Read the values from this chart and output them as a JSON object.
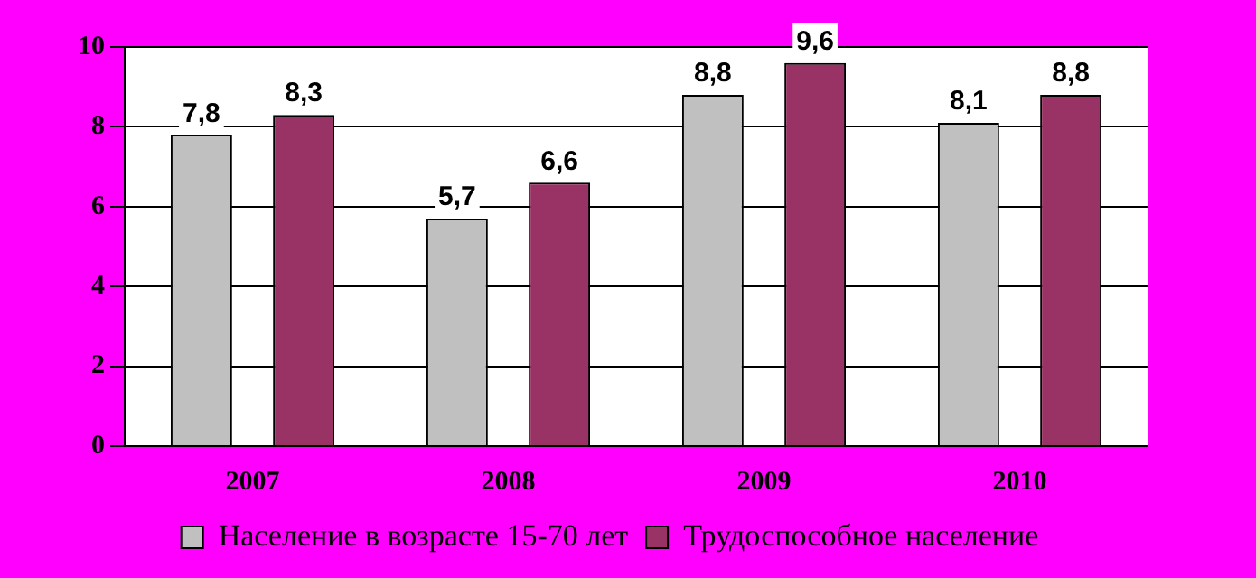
{
  "chart_data": {
    "type": "bar",
    "categories": [
      "2007",
      "2008",
      "2009",
      "2010"
    ],
    "series": [
      {
        "name": "Население в возрасте 15-70 лет",
        "color": "#c0c0c0",
        "values": [
          7.8,
          5.7,
          8.8,
          8.1
        ],
        "value_labels": [
          "7,8",
          "5,7",
          "8,8",
          "8,1"
        ]
      },
      {
        "name": "Трудоспособное население",
        "color": "#993366",
        "values": [
          8.3,
          6.6,
          9.6,
          8.8
        ],
        "value_labels": [
          "8,3",
          "6,6",
          "9,6",
          "8,8"
        ]
      }
    ],
    "ylim": [
      0,
      10
    ],
    "yticks": [
      0,
      2,
      4,
      6,
      8,
      10
    ],
    "grid": "y",
    "legend": "bottom"
  }
}
